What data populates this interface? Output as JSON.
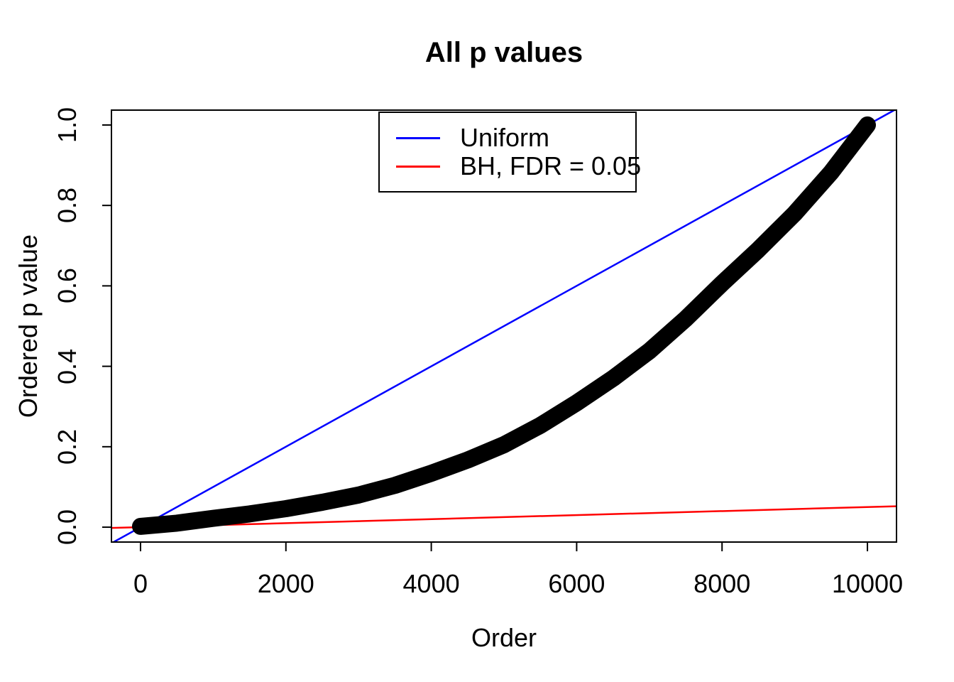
{
  "chart_data": {
    "type": "scatter",
    "title": "All p values",
    "xlabel": "Order",
    "ylabel": "Ordered p value",
    "x_ticks": [
      "0",
      "2000",
      "4000",
      "6000",
      "8000",
      "10000"
    ],
    "y_ticks": [
      "0.0",
      "0.2",
      "0.4",
      "0.6",
      "0.8",
      "1.0"
    ],
    "x_tick_values": [
      0,
      2000,
      4000,
      6000,
      8000,
      10000
    ],
    "y_tick_values": [
      0,
      0.2,
      0.4,
      0.6,
      0.8,
      1.0
    ],
    "xlim": [
      -400,
      10400
    ],
    "ylim": [
      -0.037,
      1.037
    ],
    "grid": false,
    "box": true,
    "colors": {
      "points": "#000000",
      "uniform_line": "#0000ff",
      "bh_line": "#ff0000",
      "axis": "#000000",
      "background": "#ffffff"
    },
    "legend": {
      "position": "top-center",
      "entries": [
        {
          "label": "Uniform",
          "color": "#0000ff"
        },
        {
          "label": "BH, FDR = 0.05",
          "color": "#ff0000"
        }
      ]
    },
    "series": [
      {
        "name": "Ordered p values",
        "type": "points",
        "marker": "filled-circle",
        "color": "#000000",
        "points": [
          [
            0,
            0.002
          ],
          [
            500,
            0.01
          ],
          [
            1000,
            0.022
          ],
          [
            1500,
            0.033
          ],
          [
            2000,
            0.046
          ],
          [
            2500,
            0.062
          ],
          [
            3000,
            0.08
          ],
          [
            3500,
            0.104
          ],
          [
            4000,
            0.134
          ],
          [
            4500,
            0.167
          ],
          [
            5000,
            0.205
          ],
          [
            5500,
            0.253
          ],
          [
            6000,
            0.309
          ],
          [
            6500,
            0.37
          ],
          [
            7000,
            0.438
          ],
          [
            7500,
            0.518
          ],
          [
            8000,
            0.606
          ],
          [
            8500,
            0.69
          ],
          [
            9000,
            0.78
          ],
          [
            9500,
            0.882
          ],
          [
            10000,
            1.0
          ]
        ]
      },
      {
        "name": "Uniform",
        "type": "abline",
        "color": "#0000ff",
        "intercept": 0,
        "slope": 0.0001
      },
      {
        "name": "BH, FDR = 0.05",
        "type": "abline",
        "color": "#ff0000",
        "intercept": 0,
        "slope": 5e-06
      }
    ]
  }
}
